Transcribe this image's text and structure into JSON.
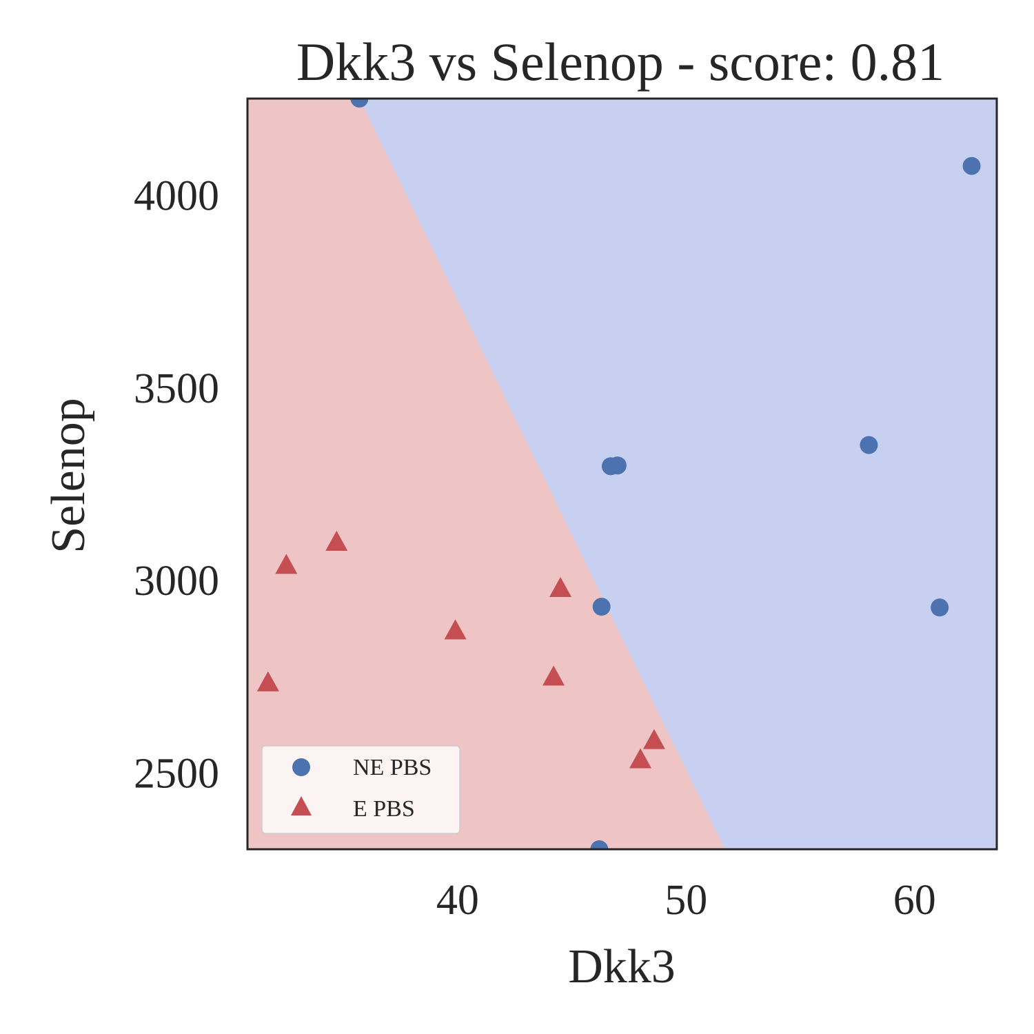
{
  "chart_data": {
    "type": "scatter",
    "title": "Dkk3 vs Selenop - score: 0.81",
    "xlabel": "Dkk3",
    "ylabel": "Selenop",
    "xlim": [
      30.8,
      63.6
    ],
    "ylim": [
      2300,
      4250
    ],
    "xticks": [
      40,
      50,
      60
    ],
    "yticks": [
      2500,
      3000,
      3500,
      4000
    ],
    "grid": false,
    "legend_position": "lower-left",
    "colors": {
      "class_ne": "#4c72b0",
      "class_e": "#c44e52",
      "region_ne": "#c8d0f1",
      "region_e": "#eec4c4",
      "axes": "#262626"
    },
    "decision_boundary": [
      [
        35.7,
        4250
      ],
      [
        51.7,
        2300
      ]
    ],
    "series": [
      {
        "name": "NE PBS",
        "marker": "circle",
        "x": [
          35.7,
          62.5,
          58.0,
          46.7,
          47.0,
          46.3,
          61.1,
          46.2
        ],
        "y": [
          4250,
          4075,
          3350,
          3295,
          3297,
          2930,
          2928,
          2300
        ]
      },
      {
        "name": "E PBS",
        "marker": "triangle",
        "x": [
          34.7,
          32.5,
          44.5,
          39.9,
          31.7,
          44.2,
          48.6,
          48.0
        ],
        "y": [
          3095,
          3035,
          2975,
          2865,
          2730,
          2745,
          2580,
          2530
        ]
      }
    ]
  }
}
